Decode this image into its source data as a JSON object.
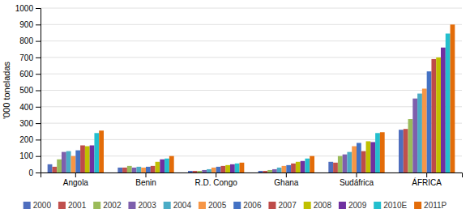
{
  "chart_data": {
    "type": "bar",
    "categories": [
      "Angola",
      "Benin",
      "R.D. Congo",
      "Ghana",
      "Sudáfrica",
      "ÁFRICA"
    ],
    "series": [
      {
        "name": "2000",
        "color": "#4F6EBE",
        "values": [
          50,
          30,
          10,
          10,
          65,
          260
        ]
      },
      {
        "name": "2001",
        "color": "#C0504D",
        "values": [
          35,
          30,
          10,
          10,
          60,
          265
        ]
      },
      {
        "name": "2002",
        "color": "#9BBB59",
        "values": [
          80,
          40,
          10,
          15,
          100,
          325
        ]
      },
      {
        "name": "2003",
        "color": "#7E5FAC",
        "values": [
          125,
          30,
          15,
          20,
          110,
          450
        ]
      },
      {
        "name": "2004",
        "color": "#4BACC6",
        "values": [
          130,
          35,
          20,
          30,
          125,
          480
        ]
      },
      {
        "name": "2005",
        "color": "#F79646",
        "values": [
          100,
          30,
          30,
          40,
          160,
          510
        ]
      },
      {
        "name": "2006",
        "color": "#4472C4",
        "values": [
          135,
          35,
          35,
          45,
          180,
          615
        ]
      },
      {
        "name": "2007",
        "color": "#BE4B48",
        "values": [
          165,
          40,
          40,
          55,
          130,
          690
        ]
      },
      {
        "name": "2008",
        "color": "#C0C000",
        "values": [
          160,
          65,
          45,
          65,
          190,
          700
        ]
      },
      {
        "name": "2009",
        "color": "#7030A0",
        "values": [
          165,
          80,
          50,
          70,
          185,
          760
        ]
      },
      {
        "name": "2010E",
        "color": "#23BFCE",
        "values": [
          240,
          85,
          55,
          85,
          240,
          845
        ]
      },
      {
        "name": "2011P",
        "color": "#E36C09",
        "values": [
          255,
          100,
          60,
          100,
          245,
          900
        ]
      }
    ],
    "ylabel": "'000 toneladas",
    "ylim": [
      0,
      1000
    ],
    "yticks": [
      0,
      100,
      200,
      300,
      400,
      500,
      600,
      700,
      800,
      900,
      1000
    ],
    "grid": true,
    "legend": "bottom"
  }
}
